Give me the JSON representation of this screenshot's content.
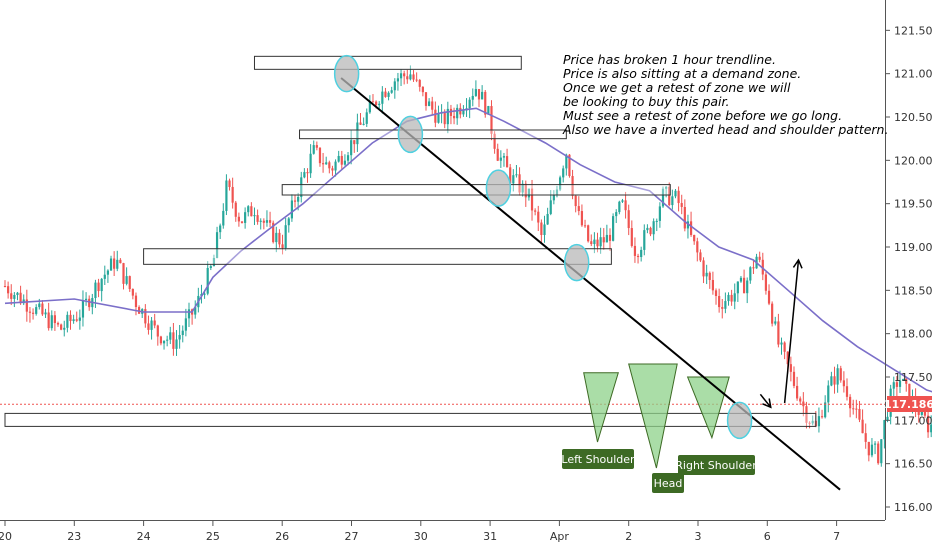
{
  "chart_data": {
    "type": "candlestick",
    "instrument_price": "117.186",
    "y_ticks": [
      "121.500",
      "121.000",
      "120.500",
      "120.000",
      "119.500",
      "119.000",
      "118.500",
      "118.000",
      "117.500",
      "117.000",
      "116.500",
      "116.000"
    ],
    "x_ticks": [
      "20",
      "23",
      "24",
      "25",
      "26",
      "27",
      "30",
      "31",
      "Apr",
      "2",
      "3",
      "6",
      "7"
    ],
    "ylim": [
      115.85,
      121.85
    ],
    "close_path": [
      {
        "t": 0.0,
        "p": 118.55
      },
      {
        "t": 0.4,
        "p": 118.3
      },
      {
        "t": 0.8,
        "p": 118.05
      },
      {
        "t": 1.1,
        "p": 118.25
      },
      {
        "t": 1.35,
        "p": 118.6
      },
      {
        "t": 1.6,
        "p": 118.85
      },
      {
        "t": 1.9,
        "p": 118.35
      },
      {
        "t": 2.2,
        "p": 118.0
      },
      {
        "t": 2.45,
        "p": 117.9
      },
      {
        "t": 2.75,
        "p": 118.3
      },
      {
        "t": 3.0,
        "p": 118.8
      },
      {
        "t": 3.2,
        "p": 119.7
      },
      {
        "t": 3.4,
        "p": 119.3
      },
      {
        "t": 3.6,
        "p": 119.45
      },
      {
        "t": 3.8,
        "p": 119.2
      },
      {
        "t": 4.0,
        "p": 119.05
      },
      {
        "t": 4.2,
        "p": 119.6
      },
      {
        "t": 4.45,
        "p": 120.1
      },
      {
        "t": 4.7,
        "p": 119.9
      },
      {
        "t": 5.0,
        "p": 120.2
      },
      {
        "t": 5.2,
        "p": 120.5
      },
      {
        "t": 5.4,
        "p": 120.75
      },
      {
        "t": 5.65,
        "p": 120.95
      },
      {
        "t": 5.85,
        "p": 121.0
      },
      {
        "t": 6.05,
        "p": 120.7
      },
      {
        "t": 6.3,
        "p": 120.45
      },
      {
        "t": 6.55,
        "p": 120.6
      },
      {
        "t": 6.8,
        "p": 120.85
      },
      {
        "t": 6.95,
        "p": 120.6
      },
      {
        "t": 7.1,
        "p": 120.1
      },
      {
        "t": 7.3,
        "p": 119.8
      },
      {
        "t": 7.55,
        "p": 119.6
      },
      {
        "t": 7.75,
        "p": 119.1
      },
      {
        "t": 7.95,
        "p": 119.7
      },
      {
        "t": 8.1,
        "p": 120.1
      },
      {
        "t": 8.25,
        "p": 119.4
      },
      {
        "t": 8.45,
        "p": 119.0
      },
      {
        "t": 8.7,
        "p": 119.1
      },
      {
        "t": 8.9,
        "p": 119.5
      },
      {
        "t": 9.1,
        "p": 118.95
      },
      {
        "t": 9.3,
        "p": 119.2
      },
      {
        "t": 9.5,
        "p": 119.6
      },
      {
        "t": 9.7,
        "p": 119.55
      },
      {
        "t": 9.9,
        "p": 119.1
      },
      {
        "t": 10.1,
        "p": 118.7
      },
      {
        "t": 10.3,
        "p": 118.35
      },
      {
        "t": 10.5,
        "p": 118.45
      },
      {
        "t": 10.7,
        "p": 118.6
      },
      {
        "t": 10.85,
        "p": 118.9
      },
      {
        "t": 11.0,
        "p": 118.5
      },
      {
        "t": 11.15,
        "p": 117.9
      },
      {
        "t": 11.35,
        "p": 117.5
      },
      {
        "t": 11.55,
        "p": 117.1
      },
      {
        "t": 11.7,
        "p": 116.9
      },
      {
        "t": 11.85,
        "p": 117.3
      },
      {
        "t": 12.0,
        "p": 117.55
      },
      {
        "t": 12.15,
        "p": 117.35
      },
      {
        "t": 12.3,
        "p": 117.0
      },
      {
        "t": 12.45,
        "p": 116.7
      },
      {
        "t": 12.6,
        "p": 116.6
      },
      {
        "t": 12.75,
        "p": 117.2
      },
      {
        "t": 12.9,
        "p": 117.5
      },
      {
        "t": 13.05,
        "p": 117.25
      },
      {
        "t": 13.2,
        "p": 117.1
      },
      {
        "t": 13.35,
        "p": 116.9
      },
      {
        "t": 13.5,
        "p": 117.3
      },
      {
        "t": 13.65,
        "p": 117.1
      },
      {
        "t": 13.8,
        "p": 117.05
      },
      {
        "t": 13.95,
        "p": 117.2
      }
    ],
    "moving_average": [
      {
        "t": 0.0,
        "p": 118.35
      },
      {
        "t": 1.0,
        "p": 118.4
      },
      {
        "t": 2.0,
        "p": 118.25
      },
      {
        "t": 2.7,
        "p": 118.25
      },
      {
        "t": 3.0,
        "p": 118.65
      },
      {
        "t": 3.4,
        "p": 118.95
      },
      {
        "t": 3.8,
        "p": 119.2
      },
      {
        "t": 4.3,
        "p": 119.5
      },
      {
        "t": 4.8,
        "p": 119.85
      },
      {
        "t": 5.3,
        "p": 120.2
      },
      {
        "t": 5.8,
        "p": 120.45
      },
      {
        "t": 6.3,
        "p": 120.55
      },
      {
        "t": 6.8,
        "p": 120.6
      },
      {
        "t": 7.2,
        "p": 120.45
      },
      {
        "t": 7.8,
        "p": 120.2
      },
      {
        "t": 8.3,
        "p": 119.95
      },
      {
        "t": 8.8,
        "p": 119.75
      },
      {
        "t": 9.3,
        "p": 119.65
      },
      {
        "t": 9.8,
        "p": 119.3
      },
      {
        "t": 10.3,
        "p": 119.0
      },
      {
        "t": 10.8,
        "p": 118.85
      },
      {
        "t": 11.3,
        "p": 118.5
      },
      {
        "t": 11.8,
        "p": 118.15
      },
      {
        "t": 12.3,
        "p": 117.85
      },
      {
        "t": 12.8,
        "p": 117.6
      },
      {
        "t": 13.3,
        "p": 117.35
      },
      {
        "t": 13.7,
        "p": 117.25
      },
      {
        "t": 13.95,
        "p": 117.2
      }
    ],
    "zones": [
      {
        "t0": 3.6,
        "t1": 7.45,
        "p0": 121.05,
        "p1": 121.2
      },
      {
        "t0": 4.25,
        "t1": 8.1,
        "p0": 120.25,
        "p1": 120.35
      },
      {
        "t0": 4.0,
        "t1": 9.6,
        "p0": 119.6,
        "p1": 119.72
      },
      {
        "t0": 2.0,
        "t1": 8.75,
        "p0": 118.8,
        "p1": 118.98
      },
      {
        "t0": 0.0,
        "t1": 11.7,
        "p0": 116.93,
        "p1": 117.08
      }
    ],
    "trendline": {
      "t0": 4.85,
      "p0": 120.95,
      "t1": 12.05,
      "p1": 116.2
    },
    "touch_points": [
      {
        "t": 4.93,
        "p": 121.0
      },
      {
        "t": 5.85,
        "p": 120.3
      },
      {
        "t": 7.12,
        "p": 119.68
      },
      {
        "t": 8.25,
        "p": 118.82
      },
      {
        "t": 10.6,
        "p": 117.0
      }
    ],
    "pattern_triangles": [
      {
        "pts": [
          [
            8.35,
            117.55
          ],
          [
            8.85,
            117.55
          ],
          [
            8.55,
            116.75
          ]
        ]
      },
      {
        "pts": [
          [
            9.0,
            117.65
          ],
          [
            9.7,
            117.65
          ],
          [
            9.4,
            116.45
          ]
        ]
      },
      {
        "pts": [
          [
            9.85,
            117.5
          ],
          [
            10.45,
            117.5
          ],
          [
            10.2,
            116.8
          ]
        ]
      }
    ],
    "arrow_small": {
      "t0": 10.9,
      "p0": 117.3,
      "t1": 11.05,
      "p1": 117.15
    },
    "arrow_big": {
      "t0": 11.25,
      "p0": 117.2,
      "t1": 11.45,
      "p1": 118.85
    },
    "annotation": [
      "Price has broken 1 hour trendline.",
      "Price is also sitting at a demand zone.",
      "Once we get a retest of zone we will",
      "be looking to buy this pair.",
      "Must see a retest of zone before we go long.",
      "Also we have a inverted head and shoulder pattern."
    ],
    "labels": {
      "left_shoulder": "Left Shoulder",
      "head": "Head",
      "right_shoulder": "Right Shoulder"
    },
    "colors": {
      "up": "#26a69a",
      "down": "#ef5350",
      "ma": "#7b6fc9",
      "price_box": "#ef5350",
      "label_bg": "#3d6a24",
      "zone_stroke": "#333333",
      "triangle_fill": "#8ed18a",
      "circle_fill": "#b8b8b8",
      "circle_stroke": "#4fd0e0"
    }
  }
}
